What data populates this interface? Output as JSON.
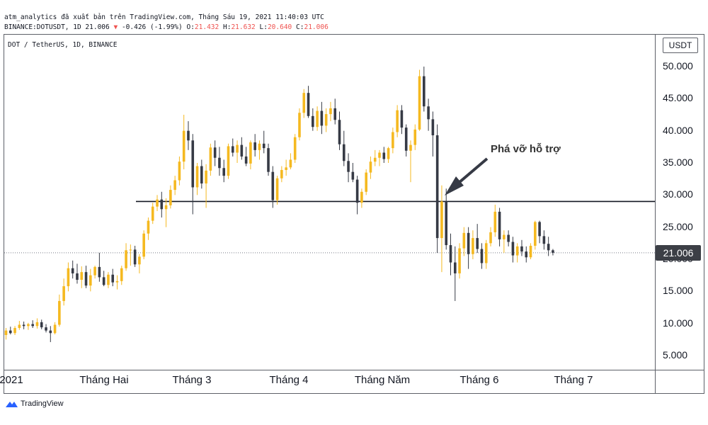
{
  "header": {
    "line1": "atm_analytics đã xuất bản trên TradingView.com, Tháng Sáu 19, 2021 11:40:03 UTC",
    "symbol": "BINANCE:DOTUSDT, 1D",
    "last": "21.006",
    "change": "-0.426 (-1.99%)",
    "o_label": "O:",
    "o": "21.432",
    "h_label": "H:",
    "h": "21.632",
    "l_label": "L:",
    "l": "20.640",
    "c_label": "C:",
    "c": "21.006"
  },
  "symbol_title": "DOT / TetherUS, 1D, BINANCE",
  "currency": "USDT",
  "last_price_label": "21.006",
  "annotation": "Phá vỡ hỗ trợ",
  "logo_text": "TradingView",
  "colors": {
    "up": "#f5b920",
    "down": "#363a45",
    "support_line": "#131722",
    "last_price_line": "#787b86"
  },
  "chart_data": {
    "type": "candlestick",
    "y_ticks": [
      "50.000",
      "45.000",
      "40.000",
      "35.000",
      "30.000",
      "25.000",
      "20.000",
      "15.000",
      "10.000",
      "5.000"
    ],
    "x_ticks": [
      "2021",
      "Tháng Hai",
      "Tháng 3",
      "Tháng 4",
      "Tháng Năm",
      "Tháng 6",
      "Tháng 7"
    ],
    "ylim": [
      1,
      53
    ],
    "support_level": 29,
    "last_price": 21.006,
    "ohlc": [
      [
        8.2,
        9.3,
        7.5,
        8.9
      ],
      [
        8.9,
        9.5,
        8.3,
        8.5
      ],
      [
        8.5,
        9.6,
        8.2,
        9.3
      ],
      [
        9.3,
        10.4,
        9.0,
        9.8
      ],
      [
        9.8,
        10.3,
        9.1,
        9.6
      ],
      [
        9.6,
        10.1,
        9.0,
        9.9
      ],
      [
        9.9,
        10.5,
        9.3,
        9.6
      ],
      [
        9.6,
        10.8,
        9.2,
        10.2
      ],
      [
        10.2,
        10.6,
        9.1,
        9.4
      ],
      [
        9.4,
        9.9,
        8.6,
        8.9
      ],
      [
        8.9,
        9.6,
        7.1,
        8.5
      ],
      [
        8.5,
        10.2,
        8.3,
        9.8
      ],
      [
        9.8,
        14.5,
        9.5,
        13.5
      ],
      [
        13.5,
        17.0,
        12.8,
        15.8
      ],
      [
        15.8,
        19.5,
        15.0,
        18.6
      ],
      [
        18.6,
        19.8,
        17.0,
        17.8
      ],
      [
        17.8,
        19.3,
        16.2,
        16.8
      ],
      [
        16.8,
        18.9,
        15.5,
        18.0
      ],
      [
        18.0,
        19.0,
        15.5,
        15.9
      ],
      [
        15.9,
        18.5,
        15.0,
        17.5
      ],
      [
        17.5,
        19.0,
        17.0,
        18.8
      ],
      [
        18.8,
        21.0,
        16.5,
        17.2
      ],
      [
        17.2,
        18.2,
        15.8,
        16.0
      ],
      [
        16.0,
        18.0,
        15.5,
        17.6
      ],
      [
        17.6,
        18.5,
        15.8,
        16.4
      ],
      [
        16.4,
        17.5,
        15.3,
        16.6
      ],
      [
        16.6,
        19.0,
        16.0,
        18.6
      ],
      [
        18.6,
        22.5,
        18.2,
        21.4
      ],
      [
        21.4,
        22.3,
        19.0,
        21.5
      ],
      [
        21.5,
        22.1,
        18.8,
        19.2
      ],
      [
        19.2,
        20.8,
        17.8,
        20.4
      ],
      [
        20.4,
        24.5,
        20.0,
        24.0
      ],
      [
        24.0,
        26.5,
        23.0,
        26.0
      ],
      [
        26.0,
        28.8,
        25.5,
        28.2
      ],
      [
        28.2,
        30.0,
        27.5,
        29.3
      ],
      [
        29.3,
        30.5,
        26.5,
        27.8
      ],
      [
        27.8,
        29.5,
        25.0,
        28.4
      ],
      [
        28.4,
        31.5,
        27.9,
        30.8
      ],
      [
        30.8,
        33.0,
        30.0,
        32.3
      ],
      [
        32.3,
        36.0,
        31.5,
        35.2
      ],
      [
        35.2,
        42.5,
        34.0,
        40.0
      ],
      [
        40.0,
        41.5,
        37.0,
        38.5
      ],
      [
        38.5,
        39.5,
        27.0,
        31.2
      ],
      [
        31.2,
        35.0,
        30.0,
        34.5
      ],
      [
        34.5,
        35.5,
        31.0,
        31.8
      ],
      [
        31.8,
        34.8,
        28.0,
        33.8
      ],
      [
        33.8,
        38.0,
        33.0,
        37.4
      ],
      [
        37.4,
        38.5,
        34.5,
        35.8
      ],
      [
        35.8,
        37.5,
        33.0,
        34.2
      ],
      [
        34.2,
        35.5,
        32.0,
        33.0
      ],
      [
        33.0,
        38.0,
        32.5,
        37.6
      ],
      [
        37.6,
        38.8,
        36.0,
        36.6
      ],
      [
        36.6,
        38.5,
        35.0,
        37.8
      ],
      [
        37.8,
        39.0,
        35.5,
        36.0
      ],
      [
        36.0,
        37.5,
        34.5,
        34.9
      ],
      [
        34.9,
        38.5,
        34.0,
        38.2
      ],
      [
        38.2,
        39.5,
        36.0,
        37.0
      ],
      [
        37.0,
        38.5,
        35.5,
        38.0
      ],
      [
        38.0,
        40.0,
        36.5,
        37.3
      ],
      [
        37.3,
        38.0,
        33.0,
        33.6
      ],
      [
        33.6,
        34.5,
        28.0,
        29.2
      ],
      [
        29.2,
        33.0,
        28.5,
        32.6
      ],
      [
        32.6,
        34.5,
        32.0,
        33.9
      ],
      [
        33.9,
        35.5,
        33.0,
        34.3
      ],
      [
        34.3,
        36.5,
        34.0,
        35.5
      ],
      [
        35.5,
        39.5,
        35.0,
        39.0
      ],
      [
        39.0,
        43.5,
        38.5,
        42.8
      ],
      [
        42.8,
        46.5,
        42.0,
        45.9
      ],
      [
        45.9,
        47.0,
        42.0,
        42.3
      ],
      [
        42.3,
        43.5,
        40.0,
        40.6
      ],
      [
        40.6,
        43.8,
        40.0,
        43.1
      ],
      [
        43.1,
        44.5,
        39.5,
        40.8
      ],
      [
        40.8,
        43.5,
        39.8,
        42.6
      ],
      [
        42.6,
        44.5,
        41.5,
        43.5
      ],
      [
        43.5,
        45.0,
        41.0,
        41.7
      ],
      [
        41.7,
        43.0,
        37.0,
        37.9
      ],
      [
        37.9,
        40.0,
        34.5,
        35.3
      ],
      [
        35.3,
        36.5,
        32.0,
        33.6
      ],
      [
        33.6,
        35.0,
        32.0,
        32.4
      ],
      [
        32.4,
        33.0,
        27.0,
        28.8
      ],
      [
        28.8,
        31.0,
        28.0,
        30.5
      ],
      [
        30.5,
        34.0,
        30.0,
        33.5
      ],
      [
        33.5,
        36.0,
        32.5,
        35.2
      ],
      [
        35.2,
        37.0,
        34.5,
        35.8
      ],
      [
        35.8,
        37.0,
        34.5,
        36.6
      ],
      [
        36.6,
        37.5,
        35.0,
        35.6
      ],
      [
        35.6,
        37.5,
        35.0,
        37.3
      ],
      [
        37.3,
        40.5,
        36.5,
        39.8
      ],
      [
        39.8,
        44.0,
        39.0,
        43.2
      ],
      [
        43.2,
        44.0,
        39.5,
        40.5
      ],
      [
        40.5,
        41.0,
        36.0,
        36.9
      ],
      [
        36.9,
        38.5,
        32.0,
        37.8
      ],
      [
        37.8,
        41.0,
        37.0,
        40.2
      ],
      [
        40.2,
        49.5,
        40.0,
        48.5
      ],
      [
        48.5,
        50.0,
        43.0,
        43.8
      ],
      [
        43.8,
        45.0,
        40.0,
        41.8
      ],
      [
        41.8,
        43.0,
        36.0,
        39.3
      ],
      [
        39.3,
        41.0,
        21.0,
        23.3
      ],
      [
        23.3,
        31.5,
        18.0,
        29.0
      ],
      [
        29.0,
        31.0,
        21.5,
        22.2
      ],
      [
        22.2,
        24.0,
        17.5,
        19.5
      ],
      [
        19.5,
        22.0,
        13.5,
        17.8
      ],
      [
        17.8,
        22.5,
        17.0,
        21.7
      ],
      [
        21.7,
        25.0,
        20.5,
        24.1
      ],
      [
        24.1,
        25.0,
        18.5,
        20.8
      ],
      [
        20.8,
        24.5,
        20.0,
        23.3
      ],
      [
        23.3,
        25.5,
        21.0,
        21.6
      ],
      [
        21.6,
        22.5,
        18.5,
        19.4
      ],
      [
        19.4,
        23.0,
        18.5,
        22.5
      ],
      [
        22.5,
        25.0,
        22.0,
        24.2
      ],
      [
        24.2,
        28.5,
        23.5,
        27.4
      ],
      [
        27.4,
        28.0,
        22.0,
        23.1
      ],
      [
        23.1,
        24.5,
        21.0,
        23.8
      ],
      [
        23.8,
        24.5,
        22.0,
        22.7
      ],
      [
        22.7,
        23.5,
        19.5,
        20.6
      ],
      [
        20.6,
        22.5,
        19.5,
        22.0
      ],
      [
        22.0,
        23.0,
        20.5,
        21.2
      ],
      [
        21.2,
        22.0,
        19.5,
        20.3
      ],
      [
        20.3,
        22.5,
        20.0,
        22.1
      ],
      [
        22.1,
        26.0,
        21.5,
        25.8
      ],
      [
        25.8,
        26.0,
        22.5,
        23.6
      ],
      [
        23.6,
        24.5,
        21.5,
        22.4
      ],
      [
        22.4,
        23.5,
        20.5,
        21.4
      ],
      [
        21.4,
        21.6,
        20.6,
        21.006
      ]
    ]
  }
}
